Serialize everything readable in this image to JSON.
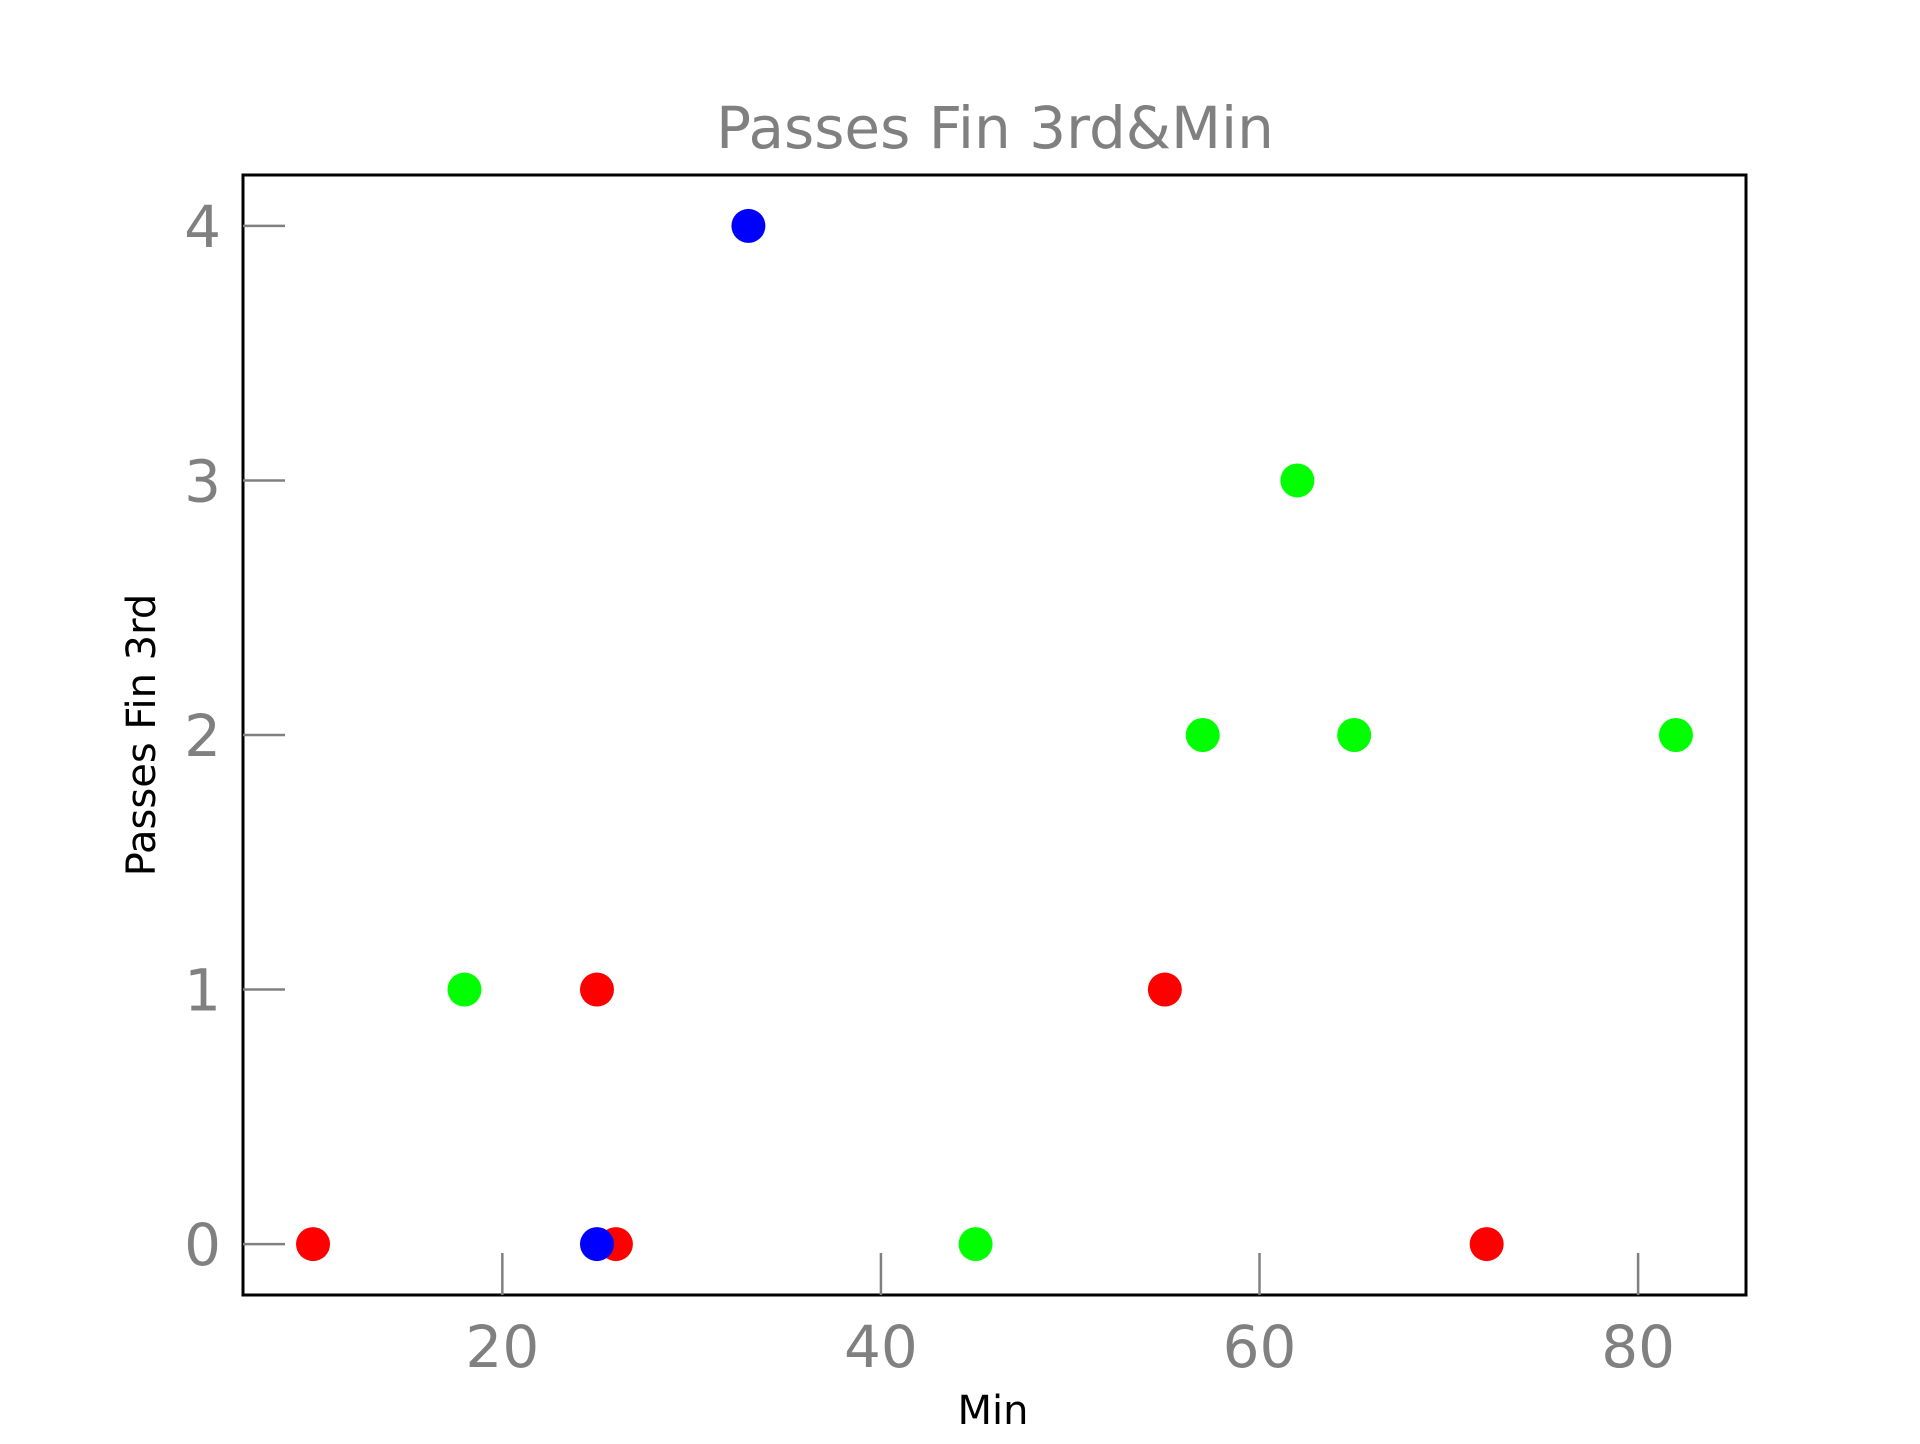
{
  "chart_data": {
    "type": "scatter",
    "title": "Passes Fin 3rd&Min",
    "xlabel": "Min",
    "ylabel": "Passes Fin 3rd",
    "xlim": [
      6.3,
      85.7
    ],
    "ylim": [
      -0.2,
      4.2
    ],
    "xticks": [
      20,
      40,
      60,
      80
    ],
    "yticks": [
      0,
      1,
      2,
      3,
      4
    ],
    "grid": false,
    "legend": "none",
    "colors": {
      "title": "#808080",
      "ticks": "#808080",
      "axis_label": "#000000",
      "frame": "#000000"
    },
    "series": [
      {
        "color": "#ff0000",
        "points": [
          {
            "x": 10,
            "y": 0
          },
          {
            "x": 25,
            "y": 1
          },
          {
            "x": 26,
            "y": 0
          },
          {
            "x": 55,
            "y": 1
          },
          {
            "x": 72,
            "y": 0
          }
        ]
      },
      {
        "color": "#00ff00",
        "points": [
          {
            "x": 18,
            "y": 1
          },
          {
            "x": 45,
            "y": 0
          },
          {
            "x": 57,
            "y": 2
          },
          {
            "x": 62,
            "y": 3
          },
          {
            "x": 65,
            "y": 2
          },
          {
            "x": 82,
            "y": 2
          }
        ]
      },
      {
        "color": "#0000ff",
        "points": [
          {
            "x": 25,
            "y": 0
          },
          {
            "x": 33,
            "y": 4
          }
        ]
      }
    ]
  }
}
